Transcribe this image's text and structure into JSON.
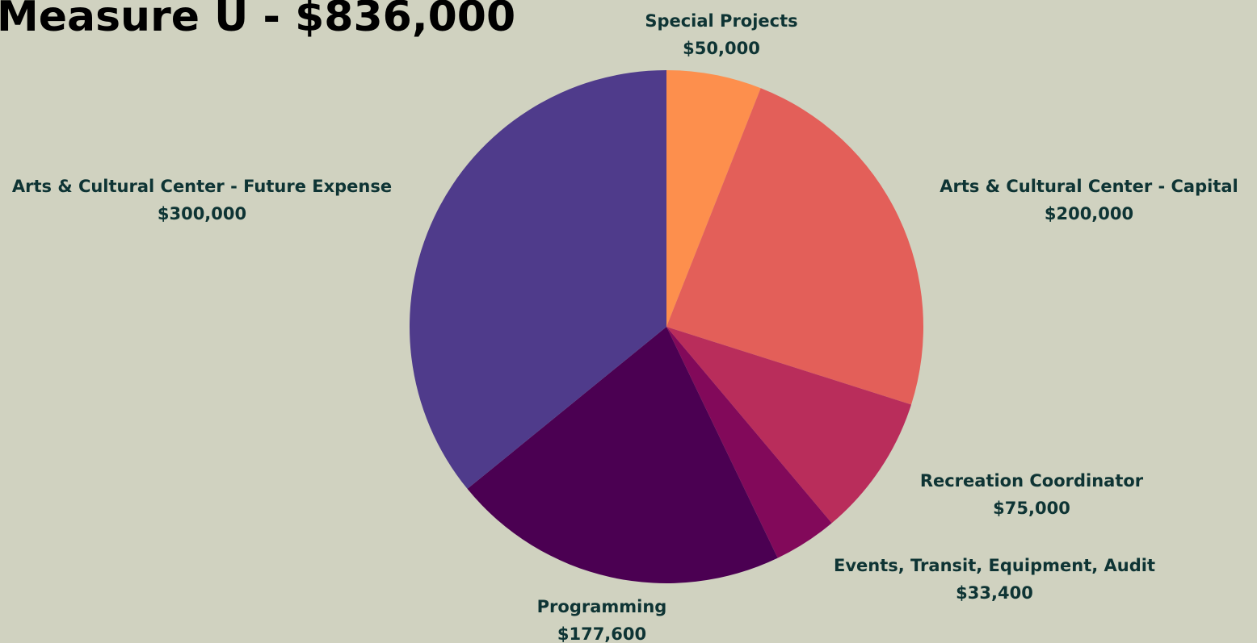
{
  "chart_data": {
    "type": "pie",
    "title": "Measure U - $836,000",
    "categories": [
      "Special Projects",
      "Arts & Cultural Center - Capital",
      "Recreation Coordinator",
      "Events, Transit, Equipment, Audit",
      "Programming",
      "Arts & Cultural Center - Future Expense"
    ],
    "values": [
      50000,
      200000,
      75000,
      33400,
      177600,
      300000
    ],
    "value_labels": [
      "$50,000",
      "$200,000",
      "$75,000",
      "$33,400",
      "$177,600",
      "$300,000"
    ],
    "colors": [
      "#fd8f4d",
      "#e35f59",
      "#b92d5b",
      "#82095a",
      "#4b0052",
      "#4f3b8b"
    ]
  }
}
